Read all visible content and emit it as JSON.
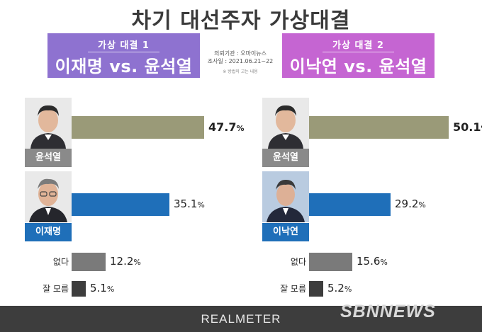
{
  "title": "차기 대선주자 가상대결",
  "matchups": [
    {
      "sub": "가상 대결 1",
      "main": "이재명 vs. 윤석열"
    },
    {
      "sub": "가상 대결 2",
      "main": "이낙연 vs. 윤석열"
    }
  ],
  "meta": {
    "line1": "의뢰기관 : 오마이뉴스",
    "line2": "조사일 : 2021.06.21~22",
    "line3": "※ 방법의 고는 내용"
  },
  "colors": {
    "yoon": "#9a9a78",
    "lee": "#1f6fb9",
    "none": "#7a7a7a",
    "dontknow": "#3d3d3d"
  },
  "chart_data": [
    {
      "type": "bar",
      "categories": [
        "윤석열",
        "이재명",
        "없다",
        "잘 모름"
      ],
      "values": [
        47.7,
        35.1,
        12.2,
        5.1
      ],
      "value_labels": [
        "47.7",
        "35.1",
        "12.2",
        "5.1"
      ],
      "unit": "%",
      "title": "가상 대결 1"
    },
    {
      "type": "bar",
      "categories": [
        "윤석열",
        "이낙연",
        "없다",
        "잘 모름"
      ],
      "values": [
        50.1,
        29.2,
        15.6,
        5.2
      ],
      "value_labels": [
        "50.1",
        "29.2",
        "15.6",
        "5.2"
      ],
      "unit": "%",
      "title": "가상 대결 2"
    }
  ],
  "footer": {
    "logo": "REALMETER"
  },
  "watermark": "SBNNEWS"
}
